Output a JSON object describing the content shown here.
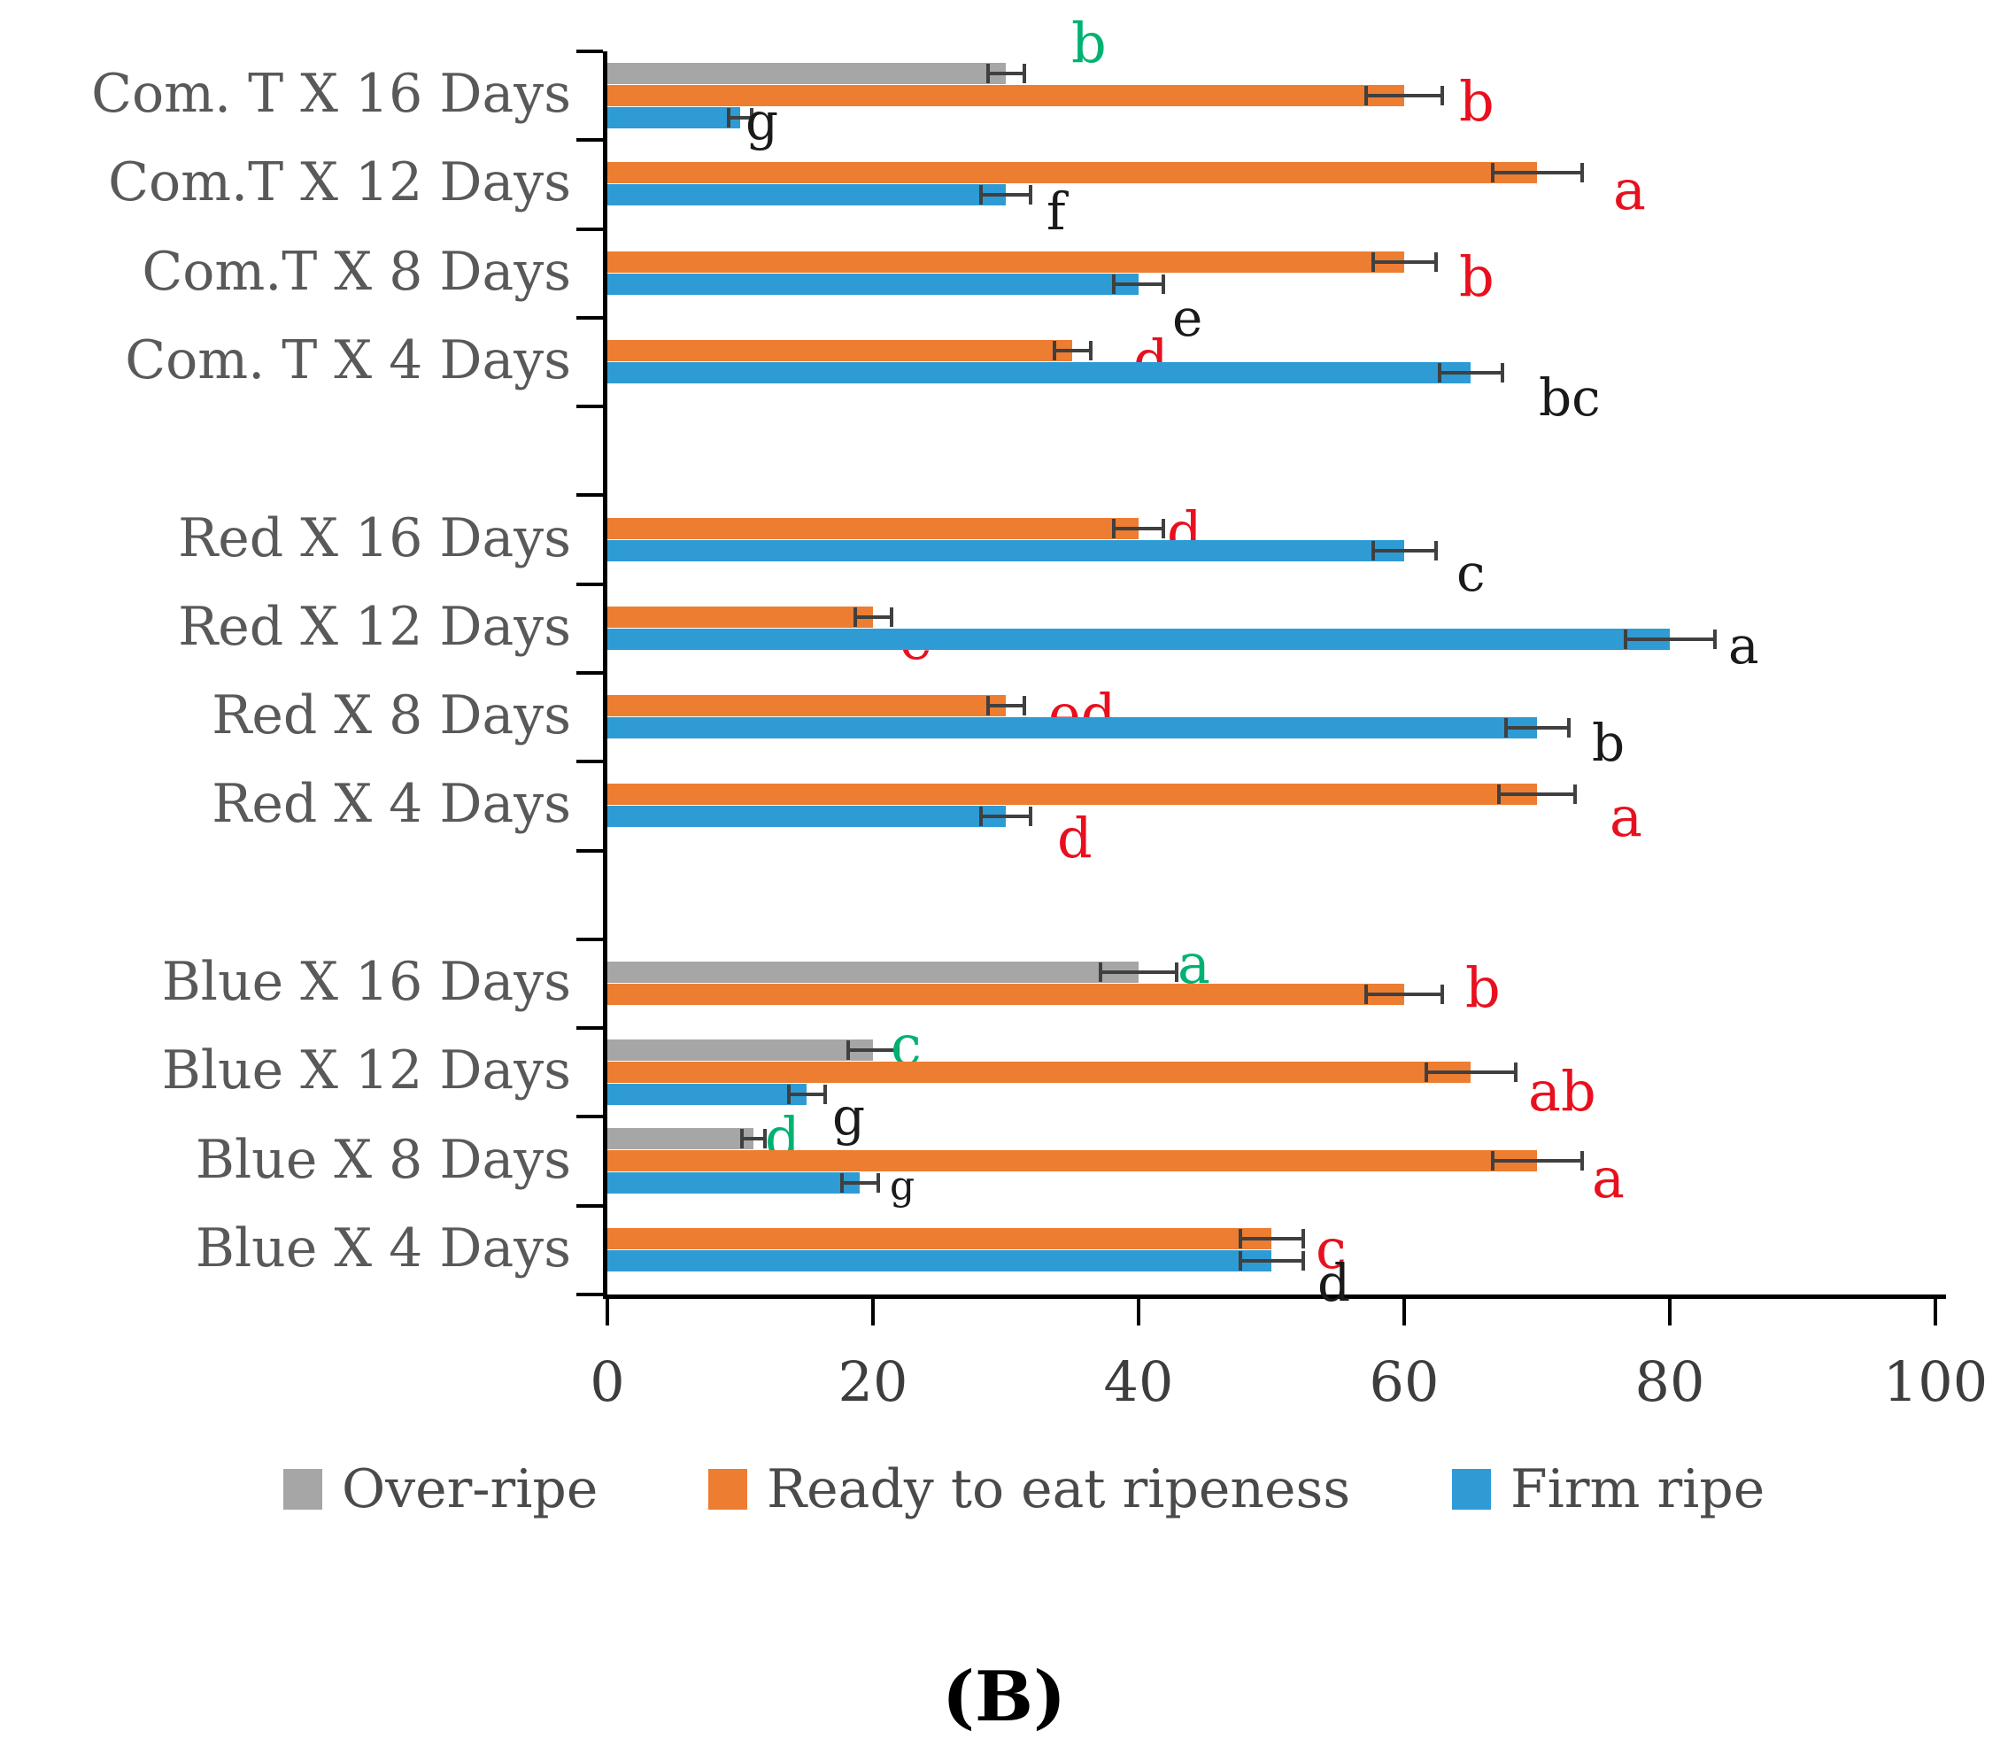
{
  "figure": {
    "caption": "(B)"
  },
  "colors": {
    "over_ripe": "#A6A6A6",
    "ready": "#ED7D31",
    "firm": "#2E9BD5",
    "error_bar": "#404040",
    "axis": "#000000",
    "category_label": "#595959",
    "letter_green": "#00B272",
    "letter_red": "#E8101E",
    "letter_black": "#1A1A1A"
  },
  "chart_data": {
    "type": "bar",
    "orientation": "horizontal",
    "title": "",
    "xlabel": "",
    "ylabel": "",
    "xlim": [
      0,
      100
    ],
    "x_ticks": [
      0,
      20,
      40,
      60,
      80,
      100
    ],
    "grid": false,
    "legend_position": "bottom",
    "series_meta": [
      {
        "key": "over_ripe",
        "name": "Over-ripe"
      },
      {
        "key": "ready",
        "name": "Ready to eat ripeness"
      },
      {
        "key": "firm",
        "name": "Firm ripe"
      }
    ],
    "groups": [
      {
        "label": "Com. T X 16 Days",
        "slot": 0,
        "bars": [
          {
            "series": "over_ripe",
            "value": 30,
            "error": 1.5,
            "letter": {
              "text": "b",
              "color": "green",
              "x": 1210,
              "y": 18,
              "size": 62
            }
          },
          {
            "series": "ready",
            "value": 60,
            "error": 3,
            "letter": {
              "text": "b",
              "color": "red",
              "x": 1648,
              "y": 84,
              "size": 62
            }
          },
          {
            "series": "firm",
            "value": 10,
            "error": 1,
            "letter": {
              "text": "g",
              "color": "black",
              "x": 842,
              "y": 108,
              "size": 58
            }
          }
        ]
      },
      {
        "label": "Com.T X 12 Days",
        "slot": 1,
        "bars": [
          {
            "series": "ready",
            "value": 70,
            "error": 3.5,
            "letter": {
              "text": "a",
              "color": "red",
              "x": 1822,
              "y": 184,
              "size": 62
            }
          },
          {
            "series": "firm",
            "value": 30,
            "error": 2,
            "letter": {
              "text": "f",
              "color": "black",
              "x": 1182,
              "y": 210,
              "size": 58
            }
          }
        ]
      },
      {
        "label": "Com.T X 8 Days",
        "slot": 2,
        "bars": [
          {
            "series": "ready",
            "value": 60,
            "error": 2.5,
            "letter": {
              "text": "b",
              "color": "red",
              "x": 1648,
              "y": 282,
              "size": 62
            }
          },
          {
            "series": "firm",
            "value": 40,
            "error": 2,
            "letter": {
              "text": "e",
              "color": "black",
              "x": 1324,
              "y": 330,
              "size": 58
            }
          }
        ]
      },
      {
        "label": "Com. T X 4 Days",
        "slot": 3,
        "bars": [
          {
            "series": "ready",
            "value": 35,
            "error": 1.5,
            "letter": {
              "text": "d",
              "color": "red",
              "x": 1280,
              "y": 376,
              "size": 62
            }
          },
          {
            "series": "firm",
            "value": 65,
            "error": 2.5,
            "letter": {
              "text": "bc",
              "color": "black",
              "x": 1738,
              "y": 420,
              "size": 58
            }
          }
        ]
      },
      {
        "label": "Red X 16 Days",
        "slot": 5,
        "bars": [
          {
            "series": "ready",
            "value": 40,
            "error": 2,
            "letter": {
              "text": "d",
              "color": "red",
              "x": 1318,
              "y": 570,
              "size": 62
            }
          },
          {
            "series": "firm",
            "value": 60,
            "error": 2.5,
            "letter": {
              "text": "c",
              "color": "black",
              "x": 1645,
              "y": 618,
              "size": 58
            }
          }
        ]
      },
      {
        "label": "Red X 12 Days",
        "slot": 6,
        "bars": [
          {
            "series": "ready",
            "value": 20,
            "error": 1.5,
            "letter": {
              "text": "e",
              "color": "red",
              "x": 1016,
              "y": 692,
              "size": 62
            }
          },
          {
            "series": "firm",
            "value": 80,
            "error": 3.5,
            "letter": {
              "text": "a",
              "color": "black",
              "x": 1952,
              "y": 700,
              "size": 58
            }
          }
        ]
      },
      {
        "label": "Red X 8 Days",
        "slot": 7,
        "bars": [
          {
            "series": "ready",
            "value": 30,
            "error": 1.5,
            "letter": {
              "text": "ed",
              "color": "red",
              "x": 1184,
              "y": 776,
              "size": 62
            }
          },
          {
            "series": "firm",
            "value": 70,
            "error": 2.5,
            "letter": {
              "text": "b",
              "color": "black",
              "x": 1798,
              "y": 810,
              "size": 58
            }
          }
        ]
      },
      {
        "label": "Red X 4 Days",
        "slot": 8,
        "bars": [
          {
            "series": "ready",
            "value": 70,
            "error": 3,
            "letter": {
              "text": "a",
              "color": "red",
              "x": 1818,
              "y": 892,
              "size": 62
            }
          },
          {
            "series": "firm",
            "value": 30,
            "error": 2,
            "letter": {
              "text": "d",
              "color": "red",
              "x": 1194,
              "y": 916,
              "size": 62
            }
          }
        ]
      },
      {
        "label": "Blue X 16 Days",
        "slot": 10,
        "bars": [
          {
            "series": "over_ripe",
            "value": 40,
            "error": 3,
            "letter": {
              "text": "a",
              "color": "green",
              "x": 1330,
              "y": 1058,
              "size": 62
            }
          },
          {
            "series": "ready",
            "value": 60,
            "error": 3,
            "letter": {
              "text": "b",
              "color": "red",
              "x": 1655,
              "y": 1085,
              "size": 62
            }
          }
        ]
      },
      {
        "label": "Blue X 12 Days",
        "slot": 11,
        "bars": [
          {
            "series": "over_ripe",
            "value": 20,
            "error": 2,
            "letter": {
              "text": "c",
              "color": "green",
              "x": 1006,
              "y": 1150,
              "size": 62
            }
          },
          {
            "series": "ready",
            "value": 65,
            "error": 3.5,
            "letter": {
              "text": "ab",
              "color": "red",
              "x": 1726,
              "y": 1202,
              "size": 62
            }
          },
          {
            "series": "firm",
            "value": 15,
            "error": 1.5,
            "letter": {
              "text": "g",
              "color": "black",
              "x": 940,
              "y": 1232,
              "size": 58
            }
          }
        ]
      },
      {
        "label": "Blue X 8 Days",
        "slot": 12,
        "bars": [
          {
            "series": "over_ripe",
            "value": 11,
            "error": 1,
            "letter": {
              "text": "d",
              "color": "green",
              "x": 864,
              "y": 1254,
              "size": 62
            }
          },
          {
            "series": "ready",
            "value": 70,
            "error": 3.5,
            "letter": {
              "text": "a",
              "color": "red",
              "x": 1798,
              "y": 1300,
              "size": 62
            }
          },
          {
            "series": "firm",
            "value": 19,
            "error": 1.5,
            "letter": {
              "text": "g",
              "color": "black",
              "x": 1005,
              "y": 1318,
              "size": 44
            }
          }
        ]
      },
      {
        "label": "Blue X 4 Days",
        "slot": 13,
        "bars": [
          {
            "series": "ready",
            "value": 50,
            "error": 2.5,
            "letter": {
              "text": "c",
              "color": "red",
              "x": 1486,
              "y": 1380,
              "size": 62
            }
          },
          {
            "series": "firm",
            "value": 50,
            "error": 2.5,
            "letter": {
              "text": "d",
              "color": "black",
              "x": 1488,
              "y": 1420,
              "size": 58
            }
          }
        ]
      }
    ],
    "legend_items": [
      {
        "series": "over_ripe",
        "label": "Over-ripe",
        "swatch_x": 320,
        "text_x": 390
      },
      {
        "series": "ready",
        "label": "Ready to eat ripeness",
        "swatch_x": 800,
        "text_x": 870
      },
      {
        "series": "firm",
        "label": "Firm ripe",
        "swatch_x": 1640,
        "text_x": 1710
      }
    ]
  }
}
